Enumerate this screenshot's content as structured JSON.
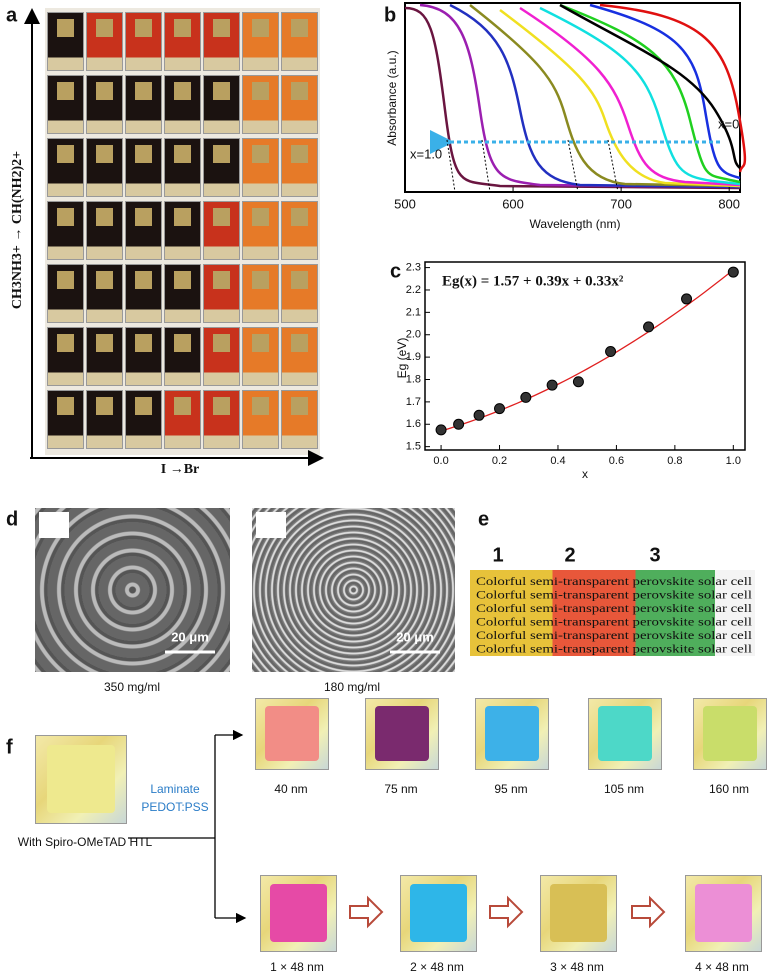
{
  "panel_a": {
    "label": "a",
    "y_axis": "CH3NH3+ → CH(NH2)2+",
    "x_axis": "I →Br"
  },
  "chart_data": [
    {
      "type": "curves",
      "panel_label": "b",
      "x_label": "Wavelength  (nm)",
      "y_label": "Absorbance  (a.u.)",
      "xlim": [
        500,
        810
      ],
      "xticks": [
        500,
        600,
        700,
        800
      ],
      "annotations": [
        "x=1.0",
        "x=0"
      ]
    },
    {
      "type": "scatter",
      "panel_label": "c",
      "x_label": "x",
      "y_label": "Eg (eV)",
      "x": [
        0,
        0.06,
        0.13,
        0.2,
        0.29,
        0.38,
        0.47,
        0.58,
        0.71,
        0.84,
        1.0
      ],
      "values": [
        1.575,
        1.6,
        1.64,
        1.67,
        1.72,
        1.775,
        1.79,
        1.925,
        2.035,
        2.16,
        2.28
      ],
      "color": "#333333",
      "xlim": [
        -0.055,
        1.04
      ],
      "ylim": [
        1.485,
        2.325
      ],
      "xticks": [
        {
          "value": 0,
          "label": "0.0"
        },
        0.2,
        0.4,
        0.6,
        0.8,
        {
          "value": 1,
          "label": "1.0"
        }
      ],
      "yticks": [
        1.5,
        1.6,
        1.7,
        1.8,
        1.9,
        {
          "value": 2,
          "label": "2.0"
        },
        2.1,
        2.2,
        2.3
      ],
      "fit": {
        "equation": "Eg(x) = 1.57 + 0.39x + 0.33x²",
        "coefficients": [
          1.57,
          0.39,
          0.33
        ],
        "color": "#e02020"
      }
    }
  ],
  "panel_d": {
    "label": "d",
    "scale_bars": [
      "20 μm",
      "20 μm"
    ],
    "captions": [
      "350 mg/ml",
      "180 mg/ml"
    ]
  },
  "panel_e": {
    "label": "e",
    "numbers": [
      "1",
      "2",
      "3"
    ],
    "rows": [
      "Colorful semi-transparent perovskite solar cell",
      "Colorful semi-transparent perovskite solar cell",
      "Colorful semi-transparent perovskite solar cell",
      "Colorful semi-transparent perovskite solar cell",
      "Colorful semi-transparent perovskite solar cell",
      "Colorful semi-transparent perovskite solar cell"
    ]
  },
  "panel_f": {
    "label": "f",
    "start_caption": "With Spiro-OMeTAD  HTL",
    "method": [
      "Laminate",
      "PEDOT:PSS"
    ],
    "top_captions": [
      "40 nm",
      "75 nm",
      "95 nm",
      "105 nm",
      "160 nm"
    ],
    "bottom_captions": [
      "1 × 48 nm",
      "2 × 48 nm",
      "3 × 48 nm",
      "4 × 48 nm"
    ]
  }
}
